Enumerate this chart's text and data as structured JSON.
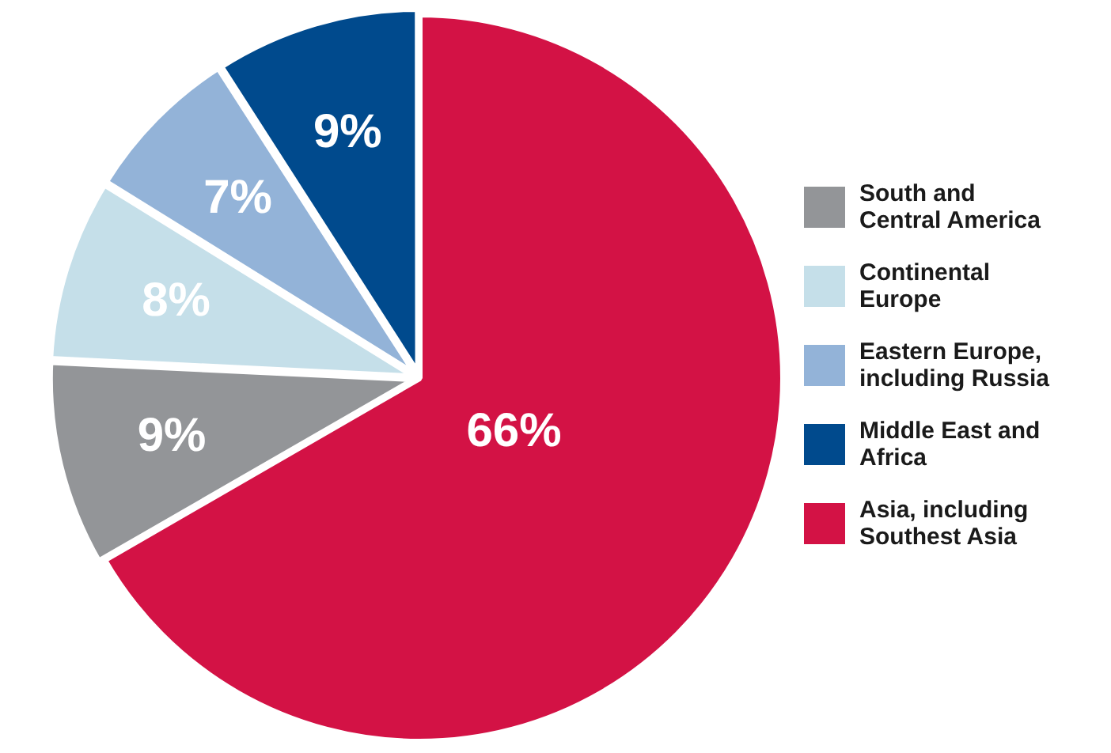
{
  "chart_data": {
    "type": "pie",
    "categories": [
      "South and Central America",
      "Continental Europe",
      "Eastern Europe, including Russia",
      "Middle East and Africa",
      "Asia, including Southest Asia"
    ],
    "values": [
      9,
      8,
      7,
      9,
      66
    ],
    "colors": [
      "#939598",
      "#c5dfe9",
      "#93b3d8",
      "#004a8d",
      "#d31245"
    ],
    "value_labels": [
      "9%",
      "8%",
      "7%",
      "9%",
      "66%"
    ],
    "legend": "right"
  }
}
